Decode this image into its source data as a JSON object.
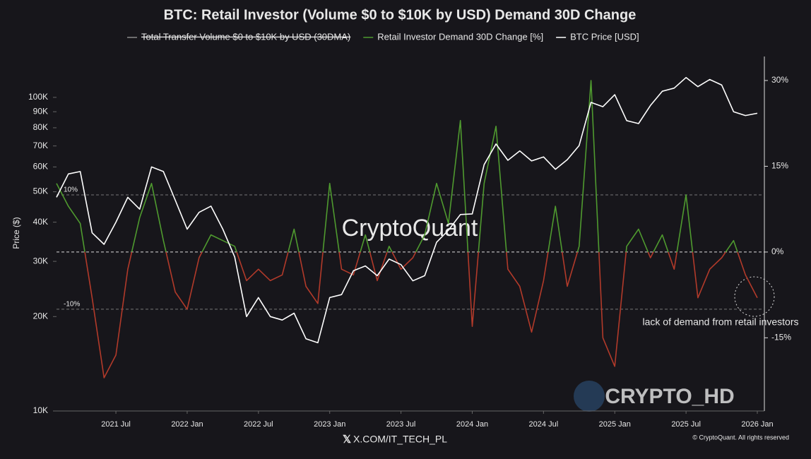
{
  "chart_data": {
    "type": "line",
    "title": "BTC: Retail Investor (Volume $0 to $10K by USD) Demand 30D Change",
    "ylabel": "Price ($)",
    "categories": [
      null,
      null,
      null,
      null,
      null,
      "2021 Jul",
      null,
      null,
      null,
      null,
      null,
      "2022 Jan",
      null,
      null,
      null,
      null,
      null,
      "2022 Jul",
      null,
      null,
      null,
      null,
      null,
      "2023 Jan",
      null,
      null,
      null,
      null,
      null,
      "2023 Jul",
      null,
      null,
      null,
      null,
      null,
      "2024 Jan",
      null,
      null,
      null,
      null,
      null,
      "2024 Jul",
      null,
      null,
      null,
      null,
      null,
      "2025 Jan",
      null,
      null,
      null,
      null,
      null,
      "2025 Jul",
      null,
      null,
      null,
      null,
      null,
      "2026 Jan"
    ],
    "series": [
      {
        "name": "Total Transfer Volume $0 to $10K by USD (30DMA)",
        "color": "#8a8a8a",
        "visible": false
      },
      {
        "name": "Retail Investor Demand 30D Change [%]",
        "color": "#4f9a2f",
        "negative_color": "#b23a2a",
        "axis": "y2",
        "values": [
          12,
          8,
          5,
          -8,
          -22,
          -18,
          -3,
          6,
          12,
          2,
          -7,
          -10,
          -1,
          3,
          2,
          1,
          -5,
          -3,
          -5,
          -4,
          4,
          -6,
          -9,
          12,
          -3,
          -4,
          3,
          -5,
          1,
          -3,
          -1,
          3,
          12,
          5,
          23,
          -13,
          12,
          22,
          -3,
          -6,
          -14,
          -5,
          8,
          -6,
          1,
          30,
          -15,
          -20,
          1,
          4,
          -1,
          3,
          -3,
          10,
          -8,
          -3,
          -1,
          2,
          -4,
          -8
        ]
      },
      {
        "name": "BTC Price [USD]",
        "color": "#ffffff",
        "values": [
          48000,
          57000,
          58000,
          37000,
          34000,
          40000,
          48000,
          44000,
          60000,
          58000,
          47000,
          38000,
          43000,
          45000,
          38000,
          31000,
          20000,
          23000,
          20000,
          19500,
          20500,
          17000,
          16500,
          23000,
          23500,
          28000,
          29000,
          27000,
          30500,
          29300,
          26000,
          27000,
          34500,
          37700,
          42300,
          42500,
          61000,
          71000,
          63000,
          67500,
          62700,
          64600,
          59000,
          63300,
          70200,
          96400,
          93400,
          102000,
          84300,
          82500,
          94200,
          104600,
          107000,
          115700,
          108200,
          114000,
          109500,
          90000,
          87500,
          89000
        ]
      }
    ],
    "ylog": true,
    "ylim": [
      10000,
      135000
    ],
    "yticks": [
      {
        "value": 10000,
        "label": "10K"
      },
      {
        "value": 20000,
        "label": "20K"
      },
      {
        "value": 30000,
        "label": "30K"
      },
      {
        "value": 40000,
        "label": "40K"
      },
      {
        "value": 50000,
        "label": "50K"
      },
      {
        "value": 60000,
        "label": "60K"
      },
      {
        "value": 70000,
        "label": "70K"
      },
      {
        "value": 80000,
        "label": "80K"
      },
      {
        "value": 90000,
        "label": "90K"
      },
      {
        "value": 100000,
        "label": "100K"
      }
    ],
    "y2lim": [
      -27.8,
      34.2
    ],
    "y2ticks": [
      {
        "value": -15,
        "label": "-15%"
      },
      {
        "value": 0,
        "label": "0%"
      },
      {
        "value": 15,
        "label": "15%"
      },
      {
        "value": 30,
        "label": "30%"
      }
    ],
    "ref_lines": [
      {
        "value": 10,
        "label": "10%"
      },
      {
        "value": 0
      },
      {
        "value": -10,
        "label": "-10%"
      }
    ],
    "annotation": "lack of demand from retail investors",
    "watermarks": [
      "CryptoQuant",
      "CRYPTO_HD",
      "X.COM/IT_TECH_PL",
      "© CryptoQuant. All rights reserved"
    ]
  }
}
